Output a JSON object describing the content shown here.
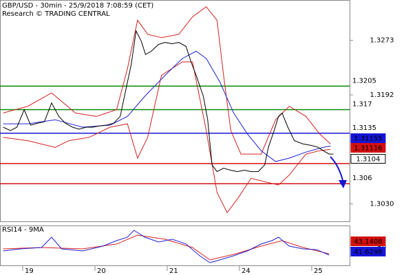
{
  "chart_data": [
    {
      "type": "line",
      "title": "GBP/USD - 30min - 25/9/2018 7:08:59 (CET)",
      "subtitle": "Research © TRADING CENTRAL",
      "xlim": [
        -0.314,
        4.524
      ],
      "ylim": [
        1.3004,
        1.3333
      ],
      "yticks": [
        1.3273,
        1.3192,
        {
          "value": 1.303,
          "label": "1.3030"
        }
      ],
      "levels": [
        {
          "value": 1.3205,
          "color": "#0a8a0a"
        },
        {
          "value": 1.317,
          "color": "#0a8a0a"
        },
        {
          "value": 1.3135,
          "color": "#1515d8"
        },
        {
          "value": 1.309,
          "color": "#d41010"
        },
        {
          "value": 1.306,
          "color": "#d41010"
        }
      ],
      "series": [
        {
          "color": "#d42020",
          "x": [
            -0.27,
            0.07,
            0.4,
            0.73,
            1.02,
            1.3,
            1.45,
            1.59,
            1.73,
            1.92,
            2.16,
            2.35,
            2.54,
            2.69,
            2.78,
            2.88,
            3.02,
            3.3,
            3.5,
            3.69,
            3.92,
            4.11,
            4.26
          ],
          "values": [
            1.3165,
            1.3175,
            1.3195,
            1.3165,
            1.316,
            1.317,
            1.3231,
            1.3303,
            1.3282,
            1.3277,
            1.3282,
            1.3308,
            1.3323,
            1.3303,
            1.3221,
            1.3139,
            1.3104,
            1.3104,
            1.3155,
            1.3175,
            1.316,
            1.3134,
            1.3119
          ]
        },
        {
          "color": "#d42020",
          "x": [
            -0.27,
            0.07,
            0.45,
            0.64,
            0.92,
            1.21,
            1.45,
            1.59,
            1.73,
            1.92,
            2.21,
            2.35,
            2.54,
            2.69,
            2.83,
            2.97,
            3.16,
            3.35,
            3.54,
            3.69,
            3.92,
            4.11,
            4.26
          ],
          "values": [
            1.3129,
            1.3124,
            1.3114,
            1.3124,
            1.3129,
            1.3144,
            1.3149,
            1.3098,
            1.3129,
            1.3221,
            1.3241,
            1.3241,
            1.3139,
            1.3047,
            1.3017,
            1.3037,
            1.3068,
            1.3063,
            1.3058,
            1.3073,
            1.3104,
            1.3109,
            1.3111
          ]
        },
        {
          "color": "#2020d0",
          "x": [
            -0.27,
            0.07,
            0.45,
            0.83,
            1.21,
            1.45,
            1.69,
            1.97,
            2.21,
            2.4,
            2.54,
            2.73,
            2.92,
            3.11,
            3.3,
            3.5,
            3.69,
            3.92,
            4.16,
            4.26
          ],
          "values": [
            1.3149,
            1.3149,
            1.3155,
            1.3144,
            1.3147,
            1.316,
            1.319,
            1.3221,
            1.3246,
            1.3257,
            1.3246,
            1.3211,
            1.3165,
            1.3134,
            1.3109,
            1.3093,
            1.3098,
            1.3107,
            1.3114,
            1.3116
          ]
        },
        {
          "color": "#000000",
          "x": [
            -0.27,
            -0.17,
            -0.08,
            0.02,
            0.11,
            0.21,
            0.3,
            0.4,
            0.5,
            0.59,
            0.69,
            0.78,
            0.88,
            0.97,
            1.07,
            1.16,
            1.26,
            1.35,
            1.45,
            1.5,
            1.57,
            1.64,
            1.7,
            1.78,
            1.88,
            1.97,
            2.07,
            2.16,
            2.26,
            2.33,
            2.4,
            2.5,
            2.56,
            2.62,
            2.69,
            2.78,
            2.88,
            2.97,
            3.07,
            3.16,
            3.26,
            3.35,
            3.4,
            3.48,
            3.54,
            3.59,
            3.67,
            3.76,
            3.88,
            3.99,
            4.09,
            4.16,
            4.24,
            4.3
          ],
          "values": [
            1.3144,
            1.3139,
            1.3144,
            1.317,
            1.3147,
            1.315,
            1.3152,
            1.318,
            1.316,
            1.315,
            1.3144,
            1.3141,
            1.3144,
            1.3144,
            1.3146,
            1.3147,
            1.315,
            1.316,
            1.3211,
            1.3236,
            1.3287,
            1.3272,
            1.3252,
            1.3257,
            1.3267,
            1.327,
            1.3268,
            1.327,
            1.3264,
            1.3241,
            1.3221,
            1.319,
            1.3155,
            1.3088,
            1.3078,
            1.3083,
            1.308,
            1.3078,
            1.308,
            1.3078,
            1.3078,
            1.3088,
            1.3114,
            1.3139,
            1.316,
            1.3165,
            1.3144,
            1.3124,
            1.3119,
            1.3117,
            1.3114,
            1.3109,
            1.3104,
            1.3104
          ]
        }
      ],
      "tags": [
        {
          "value": 1.31155,
          "color": "#1515d8"
        },
        {
          "value": 1.31116,
          "color": "#d41010"
        },
        {
          "value": 1.3104,
          "color": "#000000"
        }
      ]
    },
    {
      "type": "line",
      "title": "RSI14 - 9MA",
      "xlim": [
        -0.314,
        4.524
      ],
      "ylim": [
        30,
        75
      ],
      "yticks": [
        50
      ],
      "xticks": [
        {
          "value": 0,
          "label": "19"
        },
        {
          "value": 1,
          "label": "20"
        },
        {
          "value": 2,
          "label": "21"
        },
        {
          "value": 3,
          "label": "24"
        },
        {
          "value": 4,
          "label": "25"
        }
      ],
      "series": [
        {
          "color": "#d42020",
          "x": [
            -0.27,
            0.26,
            0.83,
            1.3,
            1.59,
            1.97,
            2.35,
            2.59,
            2.92,
            3.3,
            3.59,
            3.88,
            4.24
          ],
          "values": [
            48.6,
            50.2,
            48.6,
            54.1,
            64.1,
            59.5,
            50.2,
            36.2,
            42.4,
            51.7,
            57.9,
            50.2,
            43.1408
          ]
        },
        {
          "color": "#2020d0",
          "x": [
            -0.27,
            -0.03,
            0.26,
            0.4,
            0.54,
            0.83,
            1.11,
            1.3,
            1.45,
            1.54,
            1.69,
            1.88,
            2.07,
            2.26,
            2.45,
            2.59,
            2.73,
            2.92,
            3.11,
            3.3,
            3.45,
            3.54,
            3.69,
            3.88,
            4.07,
            4.24
          ],
          "values": [
            46.3,
            48.6,
            50.2,
            61.8,
            48.6,
            46.3,
            51.7,
            57.9,
            61.8,
            69.6,
            61.8,
            56.4,
            59.5,
            54.1,
            40.9,
            33.1,
            36.2,
            40.9,
            46.3,
            54.1,
            57.9,
            61.8,
            51.7,
            48.6,
            47.8,
            41.6298
          ]
        }
      ],
      "tags": [
        {
          "value": 43.1408,
          "color": "#d41010"
        },
        {
          "value": 41.6298,
          "color": "#1515d8"
        }
      ]
    }
  ]
}
